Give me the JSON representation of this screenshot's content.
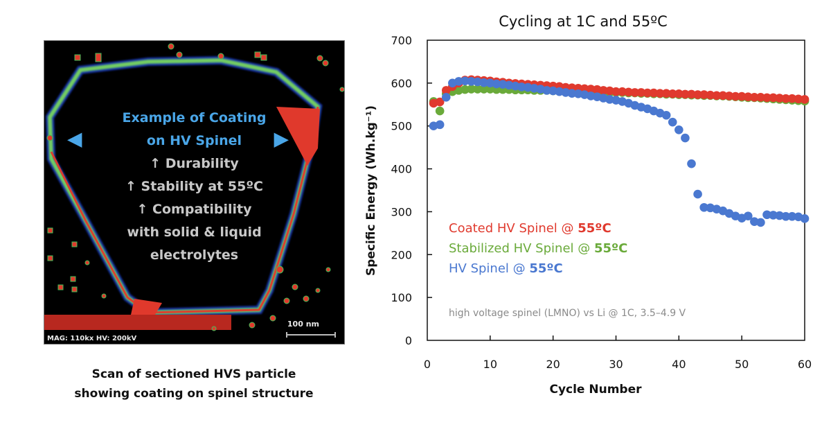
{
  "sem_panel": {
    "title_lines": [
      "Example of Coating",
      "on HV Spinel"
    ],
    "bullets": [
      "↑ Durability",
      "↑ Stability at 55ºC",
      "↑ Compatibility",
      "with solid & liquid",
      "electrolytes"
    ],
    "left_arrow": "◀",
    "right_arrow": "▶",
    "mag_label": "MAG: 110kx  HV: 200kV",
    "scale_label": "100 nm",
    "caption_lines": [
      "Scan of sectioned HVS particle",
      "showing coating on spinel structure"
    ],
    "colors": {
      "title": "#4aa6e8",
      "bullets": "#c8c8c8"
    }
  },
  "chart_data": {
    "type": "scatter",
    "title": "Cycling at 1C and 55ºC",
    "xlabel": "Cycle Number",
    "ylabel": "Specific Energy (Wh.kg⁻¹)",
    "xlim": [
      0,
      60
    ],
    "ylim": [
      0,
      700
    ],
    "xticks": [
      0,
      10,
      20,
      30,
      40,
      50,
      60
    ],
    "yticks": [
      0,
      100,
      200,
      300,
      400,
      500,
      600,
      700
    ],
    "grid": false,
    "legend_placement": "center-left",
    "annotation": "high voltage spinel (LMNO) vs Li @ 1C, 3.5–4.9 V",
    "x": [
      1,
      2,
      3,
      4,
      5,
      6,
      7,
      8,
      9,
      10,
      11,
      12,
      13,
      14,
      15,
      16,
      17,
      18,
      19,
      20,
      21,
      22,
      23,
      24,
      25,
      26,
      27,
      28,
      29,
      30,
      31,
      32,
      33,
      34,
      35,
      36,
      37,
      38,
      39,
      40,
      41,
      42,
      43,
      44,
      45,
      46,
      47,
      48,
      49,
      50,
      51,
      52,
      53,
      54,
      55,
      56,
      57,
      58,
      59,
      60
    ],
    "series": [
      {
        "name": "Stabilized HV Spinel @ 55ºC",
        "label_prefix": "Stabilized HV Spinel @ ",
        "label_bold": "55ºC",
        "color": "#6aaa3a",
        "values": [
          557,
          535,
          575,
          580,
          583,
          585,
          586,
          586,
          586,
          586,
          585,
          585,
          585,
          584,
          584,
          584,
          583,
          583,
          583,
          582,
          582,
          581,
          581,
          581,
          580,
          580,
          579,
          579,
          578,
          578,
          578,
          577,
          577,
          576,
          576,
          575,
          575,
          574,
          574,
          573,
          573,
          572,
          572,
          571,
          571,
          570,
          570,
          569,
          568,
          567,
          566,
          566,
          565,
          564,
          563,
          562,
          561,
          560,
          559,
          558
        ]
      },
      {
        "name": "Coated HV Spinel @ 55ºC",
        "label_prefix": "Coated HV Spinel @ ",
        "label_bold": "55ºC",
        "color": "#e03a2e",
        "values": [
          553,
          556,
          583,
          592,
          600,
          607,
          608,
          607,
          606,
          605,
          603,
          602,
          600,
          599,
          598,
          597,
          596,
          595,
          594,
          593,
          592,
          590,
          589,
          588,
          587,
          586,
          585,
          583,
          582,
          580,
          580,
          579,
          578,
          578,
          577,
          577,
          576,
          576,
          575,
          575,
          574,
          574,
          573,
          573,
          572,
          571,
          571,
          570,
          569,
          569,
          568,
          567,
          567,
          566,
          566,
          565,
          564,
          564,
          563,
          562
        ]
      },
      {
        "name": "HV Spinel @ 55ºC",
        "label_prefix": "HV Spinel @ ",
        "label_bold": "55ºC",
        "color": "#4a78d0",
        "values": [
          500,
          503,
          567,
          600,
          604,
          605,
          604,
          603,
          601,
          600,
          598,
          597,
          595,
          593,
          591,
          590,
          588,
          586,
          583,
          582,
          580,
          578,
          576,
          575,
          573,
          570,
          568,
          565,
          562,
          560,
          557,
          553,
          548,
          544,
          540,
          535,
          530,
          525,
          509,
          491,
          472,
          412,
          341,
          310,
          309,
          306,
          302,
          296,
          290,
          285,
          290,
          277,
          275,
          293,
          292,
          291,
          289,
          289,
          288,
          284
        ]
      }
    ]
  }
}
